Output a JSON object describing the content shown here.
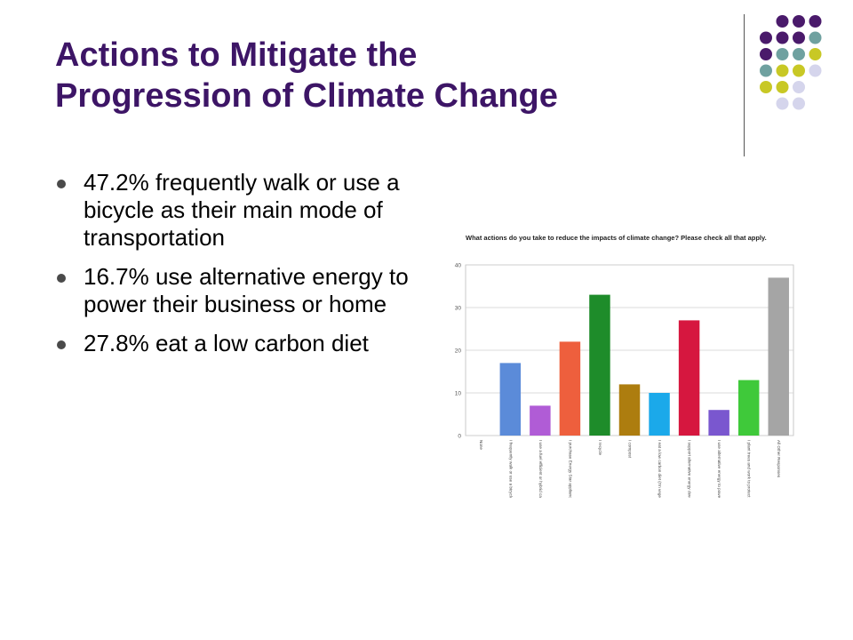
{
  "slide": {
    "title_lines": [
      "Actions to Mitigate the",
      "Progression of Climate Change"
    ],
    "bullets": [
      "47.2% frequently walk or use a bicycle as their main mode of transportation",
      "16.7% use alternative energy to power their business or home",
      "27.8% eat a low carbon diet"
    ]
  },
  "colors": {
    "title": "#3d1566",
    "dot_purple": "#4a1a6b",
    "dot_teal": "#6fa1a0",
    "dot_olive": "#c8c825",
    "dot_lavender": "#d5d5ec"
  },
  "chart_data": {
    "type": "bar",
    "title": "What actions do you take to reduce the impacts of climate change? Please check all that apply.",
    "xlabel": "",
    "ylabel": "",
    "ylim": [
      0,
      40
    ],
    "yticks": [
      0,
      10,
      20,
      30,
      40
    ],
    "grid": true,
    "categories": [
      "None",
      "I frequently walk or use a bicycle as my main mode of transportation",
      "I use a fuel efficient or hybrid car",
      "I purchase Energy Star appliances and electronics",
      "I recycle",
      "I compost",
      "I eat a low carbon diet (I'm vegetarian avoiding foods that are grown...",
      "I support alternative energy development",
      "I use alternative energy to power my home or business",
      "I plant trees and work to protect existing forests",
      "All Other Responses"
    ],
    "values": [
      0,
      17,
      7,
      22,
      33,
      12,
      10,
      27,
      6,
      13,
      37
    ],
    "colors": [
      "#cccccc",
      "#5b8bd9",
      "#b05cd6",
      "#ee5f3d",
      "#1e8c2a",
      "#ad7d0f",
      "#1ba9ea",
      "#d6173f",
      "#7a57cf",
      "#3fc93a",
      "#a5a5a5"
    ]
  }
}
